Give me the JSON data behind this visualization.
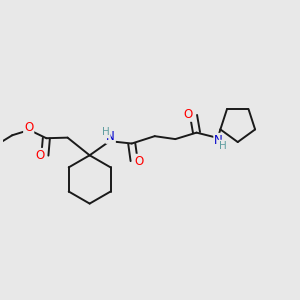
{
  "background_color": "#e8e8e8",
  "line_color": "#1a1a1a",
  "bond_width": 1.4,
  "atom_colors": {
    "O": "#ff0000",
    "N": "#0000cc",
    "H_teal": "#5f9ea0",
    "C": "#1a1a1a"
  },
  "font_size_atoms": 8.5,
  "font_size_H": 7.5,
  "figsize": [
    3.0,
    3.0
  ],
  "dpi": 100
}
